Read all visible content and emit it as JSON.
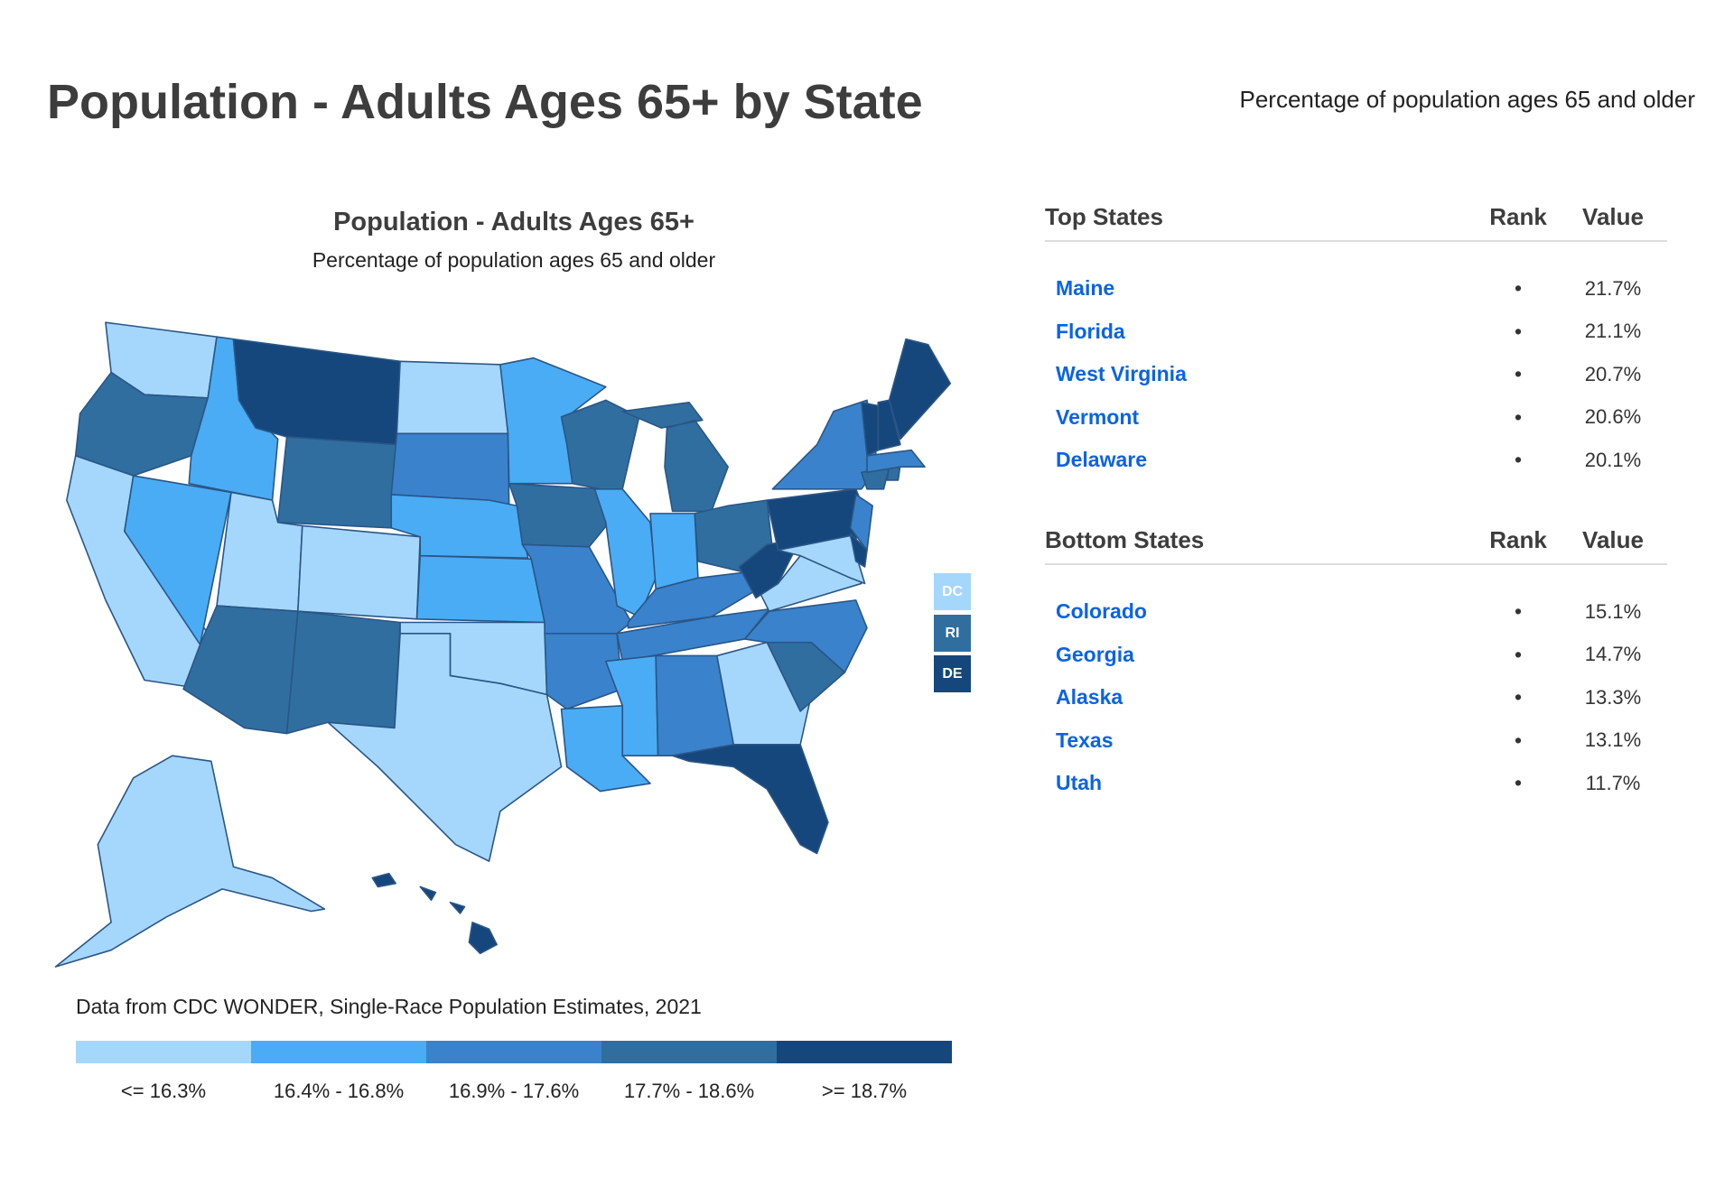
{
  "header": {
    "title": "Population - Adults Ages 65+ by State",
    "subtitle": "Percentage of population ages 65 and older"
  },
  "chart_data": {
    "type": "choropleth",
    "title": "Population - Adults Ages 65+",
    "subtitle": "Percentage of population ages 65 and older",
    "source": "Data from CDC WONDER, Single-Race Population Estimates, 2021",
    "bins": [
      {
        "label": "<= 16.3%",
        "color": "#a5d7fc"
      },
      {
        "label": "16.4% - 16.8%",
        "color": "#4aacf4"
      },
      {
        "label": "16.9% - 17.6%",
        "color": "#3a82cc"
      },
      {
        "label": "17.7% - 18.6%",
        "color": "#306ea0"
      },
      {
        "label": ">= 18.7%",
        "color": "#15477c"
      }
    ],
    "state_bins": {
      "WA": 1,
      "OR": 4,
      "CA": 1,
      "NV": 2,
      "ID": 2,
      "MT": 5,
      "WY": 4,
      "UT": 1,
      "CO": 1,
      "AZ": 4,
      "NM": 4,
      "ND": 1,
      "SD": 3,
      "NE": 2,
      "KS": 2,
      "OK": 1,
      "TX": 1,
      "MN": 2,
      "IA": 4,
      "MO": 3,
      "AR": 3,
      "LA": 2,
      "WI": 4,
      "IL": 2,
      "MI": 4,
      "IN": 2,
      "OH": 4,
      "KY": 3,
      "TN": 3,
      "MS": 2,
      "AL": 3,
      "GA": 1,
      "FL": 5,
      "SC": 4,
      "NC": 3,
      "VA": 1,
      "WV": 5,
      "PA": 5,
      "NY": 3,
      "NJ": 3,
      "MD": 1,
      "DE": 5,
      "CT": 4,
      "RI": 4,
      "MA": 3,
      "VT": 5,
      "NH": 5,
      "ME": 5,
      "AK": 1,
      "HI": 5,
      "DC": 1
    },
    "small_states": [
      {
        "label": "DC",
        "bin": 1
      },
      {
        "label": "RI",
        "bin": 4
      },
      {
        "label": "DE",
        "bin": 5
      }
    ]
  },
  "tables": {
    "top": {
      "headers": [
        "Top States",
        "Rank",
        "Value"
      ],
      "rows": [
        {
          "name": "Maine",
          "rank": "•",
          "value": "21.7%"
        },
        {
          "name": "Florida",
          "rank": "•",
          "value": "21.1%"
        },
        {
          "name": "West Virginia",
          "rank": "•",
          "value": "20.7%"
        },
        {
          "name": "Vermont",
          "rank": "•",
          "value": "20.6%"
        },
        {
          "name": "Delaware",
          "rank": "•",
          "value": "20.1%"
        }
      ]
    },
    "bottom": {
      "headers": [
        "Bottom States",
        "Rank",
        "Value"
      ],
      "rows": [
        {
          "name": "Colorado",
          "rank": "•",
          "value": "15.1%"
        },
        {
          "name": "Georgia",
          "rank": "•",
          "value": "14.7%"
        },
        {
          "name": "Alaska",
          "rank": "•",
          "value": "13.3%"
        },
        {
          "name": "Texas",
          "rank": "•",
          "value": "13.1%"
        },
        {
          "name": "Utah",
          "rank": "•",
          "value": "11.7%"
        }
      ]
    }
  }
}
